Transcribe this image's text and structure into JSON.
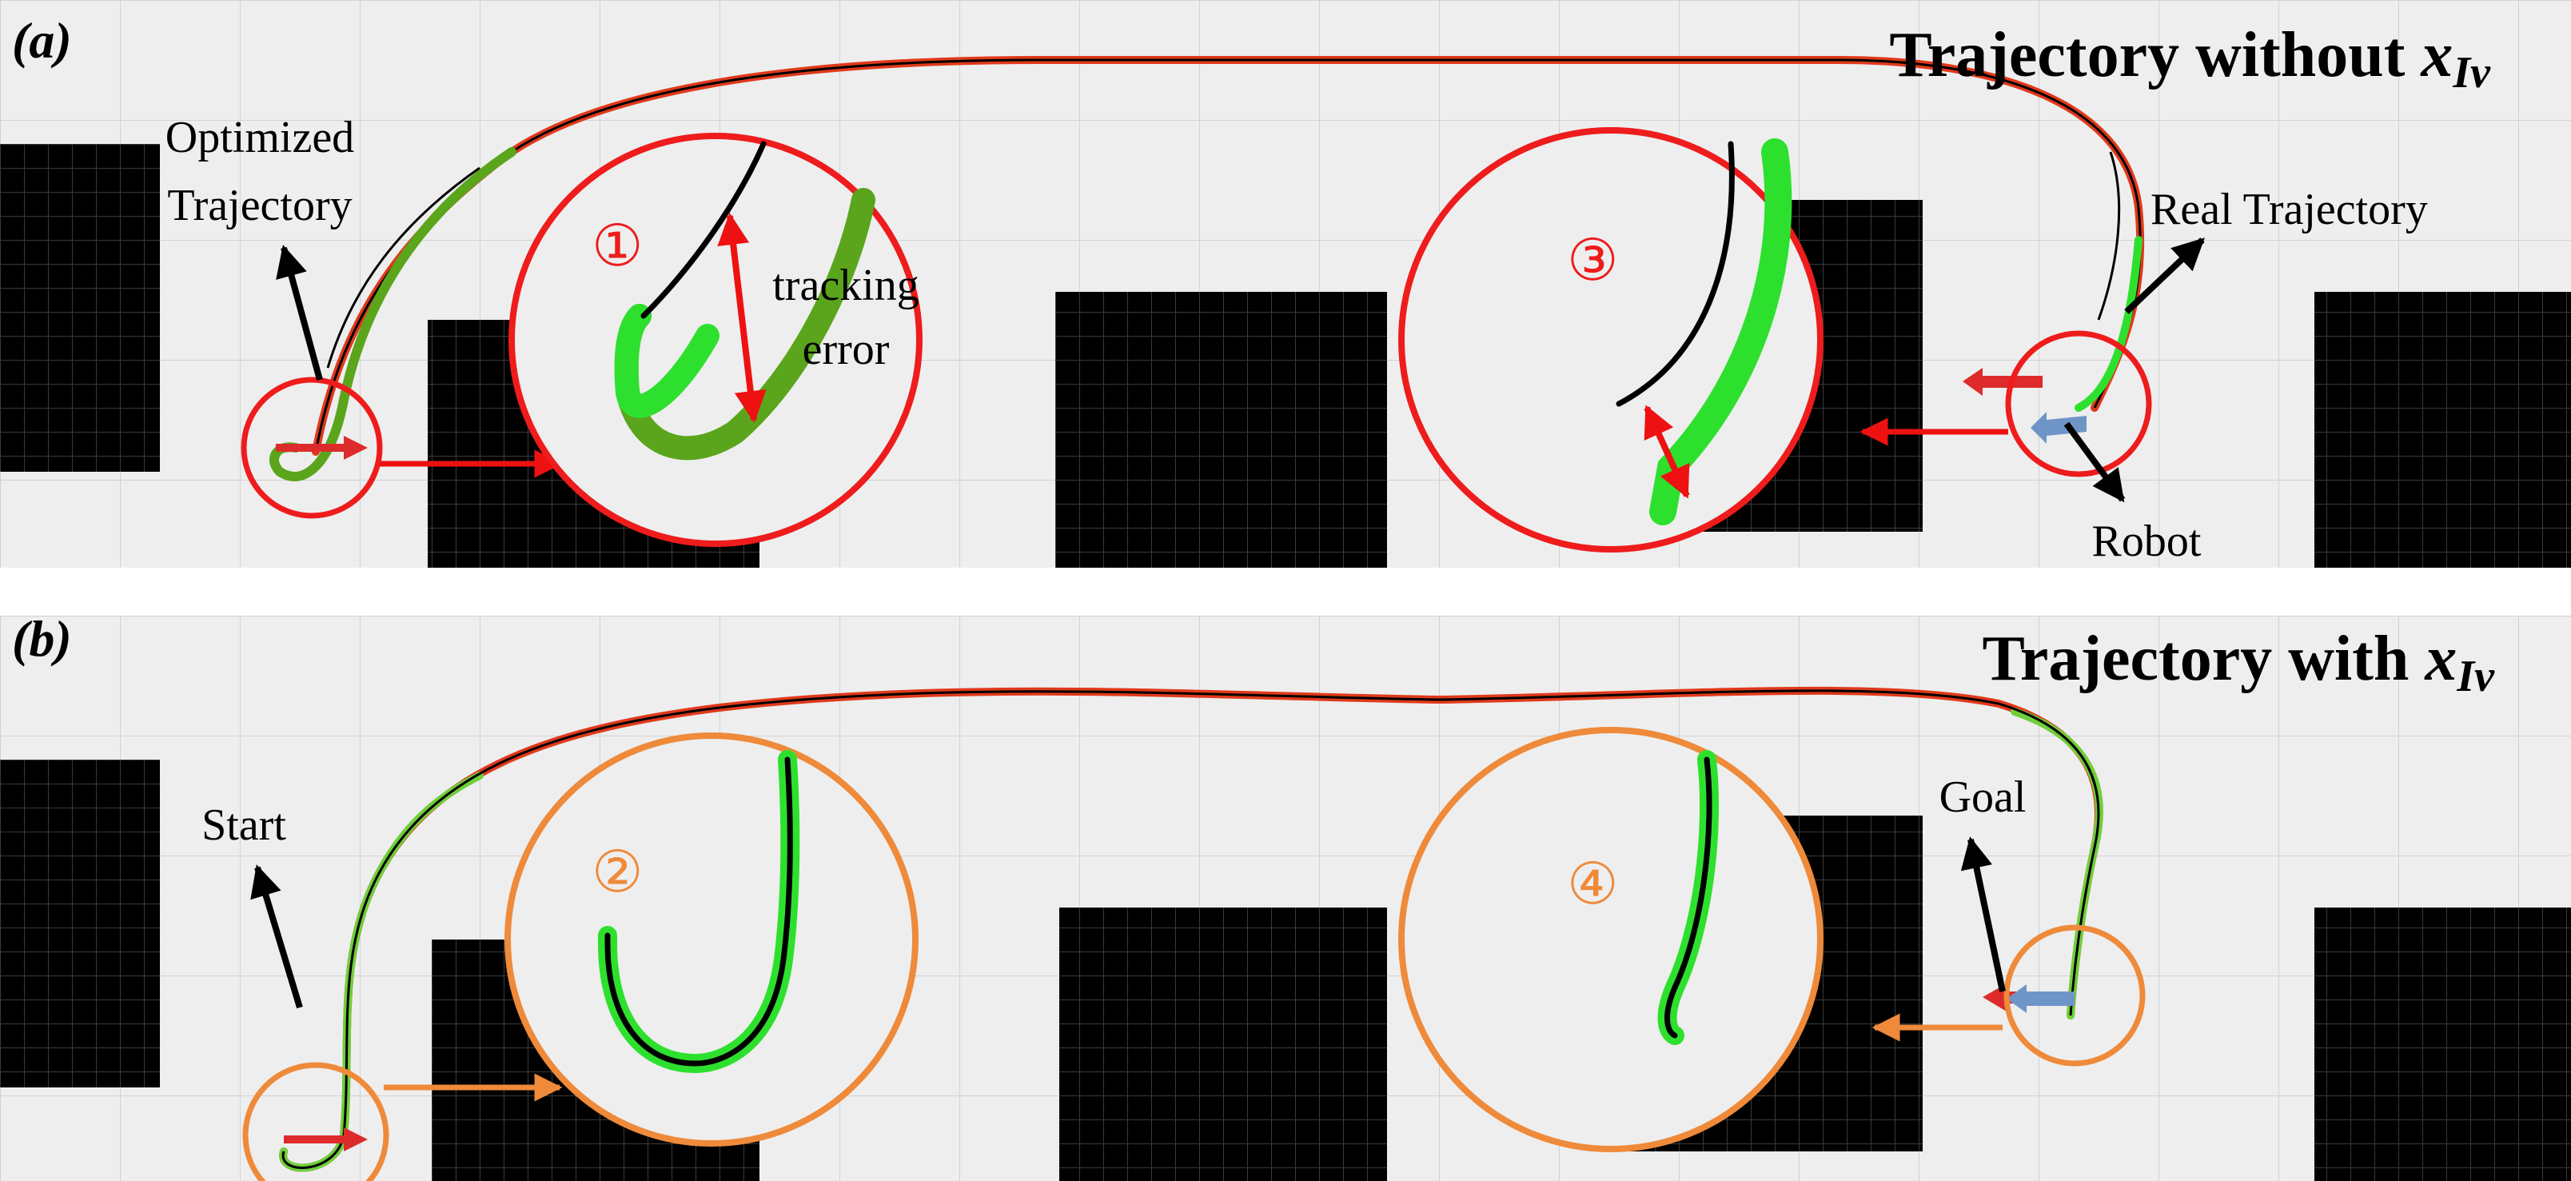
{
  "panel_a": {
    "label": "(a)",
    "title_prefix": "Trajectory without ",
    "title_var": "x",
    "title_sub": "Iv",
    "labels": {
      "optimized_line1": "Optimized",
      "optimized_line2": "Trajectory",
      "real": "Real Trajectory",
      "robot": "Robot",
      "tracking_line1": "tracking",
      "tracking_line2": "error"
    },
    "markers": {
      "one": "①",
      "three": "③"
    }
  },
  "panel_b": {
    "label": "(b)",
    "title_prefix": "Trajectory with ",
    "title_var": "x",
    "title_sub": "Iv",
    "labels": {
      "start": "Start",
      "goal": "Goal"
    },
    "markers": {
      "two": "②",
      "four": "④"
    }
  },
  "colors": {
    "panel_bg": "#eeeeee",
    "grid": "#d2d2d2",
    "obstacle": "#000000",
    "obstacle_grid": "#3a3a3a",
    "optimized_trajectory": "#000000",
    "real_trajectory": "#2ee02e",
    "real_trajectory_dark": "#5aa51c",
    "path_overview": "#e0391b",
    "zoom_circle_a": "#ee1c1c",
    "zoom_circle_b": "#ee8a3a",
    "tracking_error_arrow": "#ee1111",
    "robot_arrow": "#6f95c8",
    "heading_arrow": "#dd2b2b"
  }
}
